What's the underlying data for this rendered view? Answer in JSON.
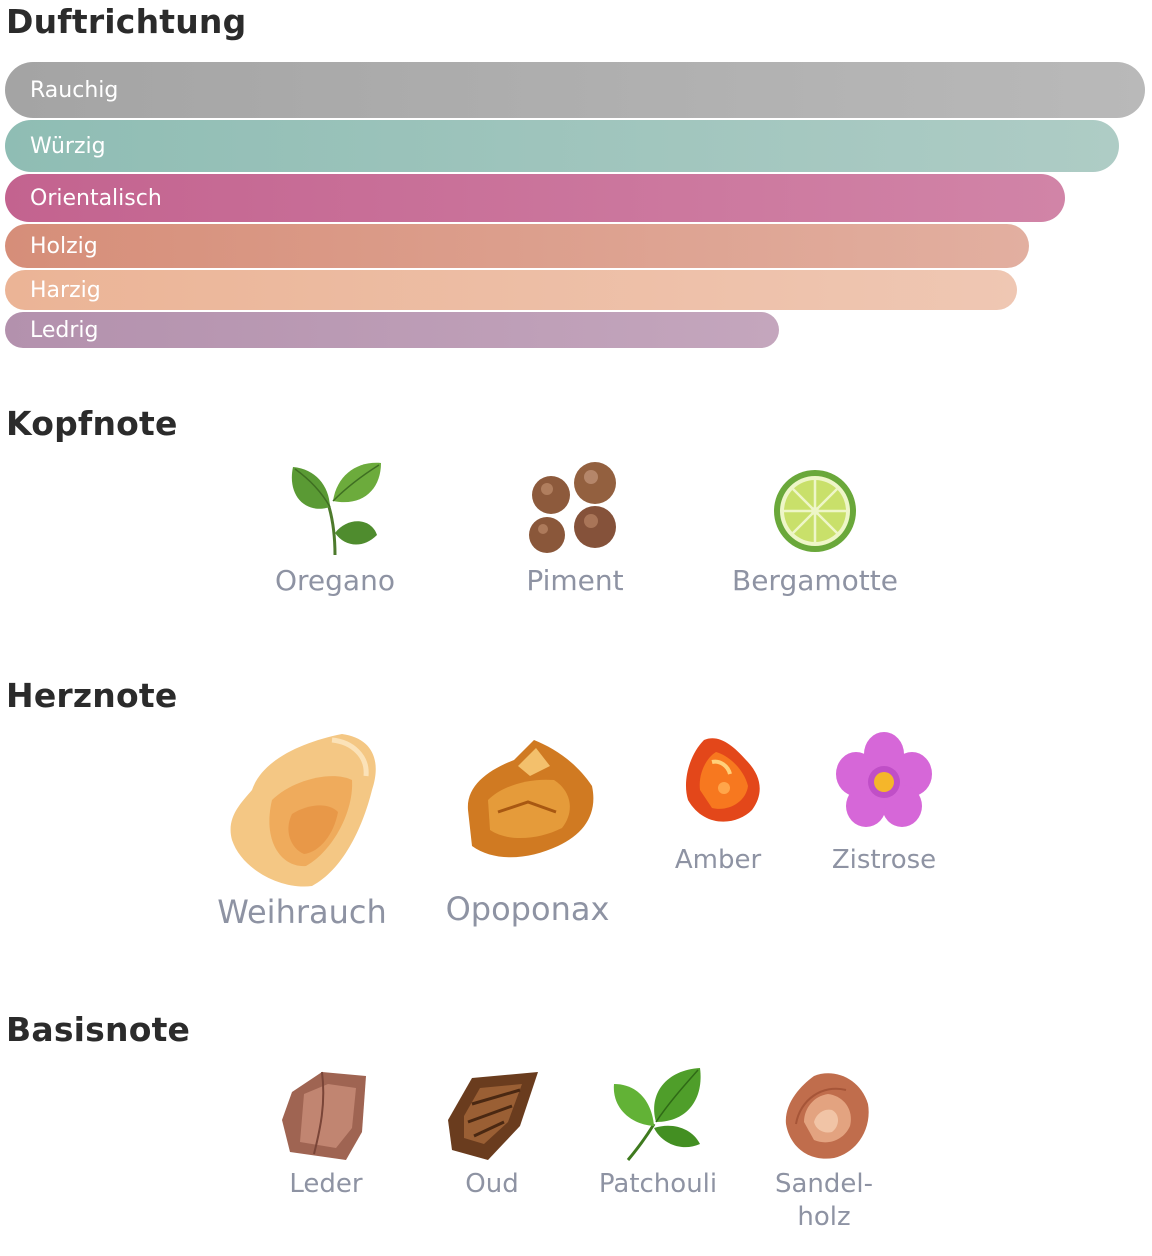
{
  "sections": {
    "accords_title": "Duftrichtung",
    "top_title": "Kopfnote",
    "heart_title": "Herznote",
    "base_title": "Basisnote"
  },
  "accords": [
    {
      "label": "Rauchig",
      "strength": 1.0,
      "color_from": "#a4a4a4",
      "color_to": "#b9b9b9"
    },
    {
      "label": "Würzig",
      "strength": 0.977,
      "color_from": "#8fbdb4",
      "color_to": "#aeccc5"
    },
    {
      "label": "Orientalisch",
      "strength": 0.93,
      "color_from": "#c3638f",
      "color_to": "#d184a7"
    },
    {
      "label": "Holzig",
      "strength": 0.898,
      "color_from": "#d68e79",
      "color_to": "#e2afa0"
    },
    {
      "label": "Harzig",
      "strength": 0.888,
      "color_from": "#ebb496",
      "color_to": "#efc7b3"
    },
    {
      "label": "Ledrig",
      "strength": 0.679,
      "color_from": "#b391ad",
      "color_to": "#c4a6bd"
    }
  ],
  "top_notes": [
    {
      "label": "Oregano",
      "icon": "oregano-leaf-icon"
    },
    {
      "label": "Piment",
      "icon": "allspice-icon"
    },
    {
      "label": "Bergamotte",
      "icon": "bergamot-icon"
    }
  ],
  "heart_notes": [
    {
      "label": "Weihrauch",
      "icon": "frankincense-icon"
    },
    {
      "label": "Opoponax",
      "icon": "opoponax-resin-icon"
    },
    {
      "label": "Amber",
      "icon": "amber-stone-icon"
    },
    {
      "label": "Zistrose",
      "icon": "rockrose-flower-icon"
    }
  ],
  "base_notes": [
    {
      "label": "Leder",
      "icon": "leather-icon"
    },
    {
      "label": "Oud",
      "icon": "oud-wood-icon"
    },
    {
      "label": "Patchouli",
      "icon": "patchouli-leaf-icon"
    },
    {
      "label": "Sandel-\nholz",
      "icon": "sandalwood-icon"
    }
  ]
}
